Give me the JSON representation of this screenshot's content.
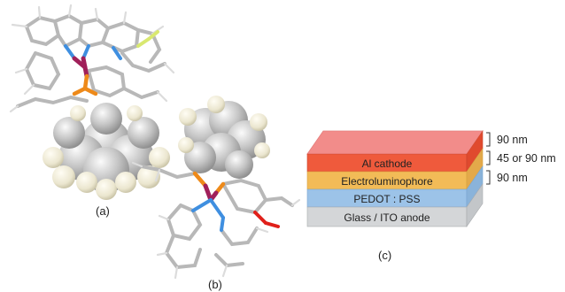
{
  "panels": {
    "a": {
      "label": "(a)"
    },
    "b": {
      "label": "(b)"
    },
    "c": {
      "label": "(c)"
    }
  },
  "device_stack": {
    "layers": [
      {
        "id": "top",
        "label": "",
        "color": "#f07a78"
      },
      {
        "id": "al",
        "label": "Al cathode",
        "color": "#ef5a3c"
      },
      {
        "id": "elum",
        "label": "Electroluminophore",
        "color": "#f2bb57"
      },
      {
        "id": "pedot",
        "label": "PEDOT : PSS",
        "color": "#9cc3e8"
      },
      {
        "id": "glass",
        "label": "Glass / ITO anode",
        "color": "#d4d6d8"
      }
    ],
    "thickness_labels": [
      {
        "id": "t-top",
        "text": "90 nm"
      },
      {
        "id": "t-mid",
        "text": "45 or 90 nm"
      },
      {
        "id": "t-pedot",
        "text": "90 nm"
      }
    ]
  },
  "molecule_colors": {
    "carbon": "#c9c9c9",
    "hydrogen": "#f2f0e6",
    "nitrogen": "#3f8fe0",
    "phosphorus": "#ee8a1a",
    "metal": "#a0205a",
    "fluorine": "#d9e870",
    "oxygen": "#e0201a"
  }
}
